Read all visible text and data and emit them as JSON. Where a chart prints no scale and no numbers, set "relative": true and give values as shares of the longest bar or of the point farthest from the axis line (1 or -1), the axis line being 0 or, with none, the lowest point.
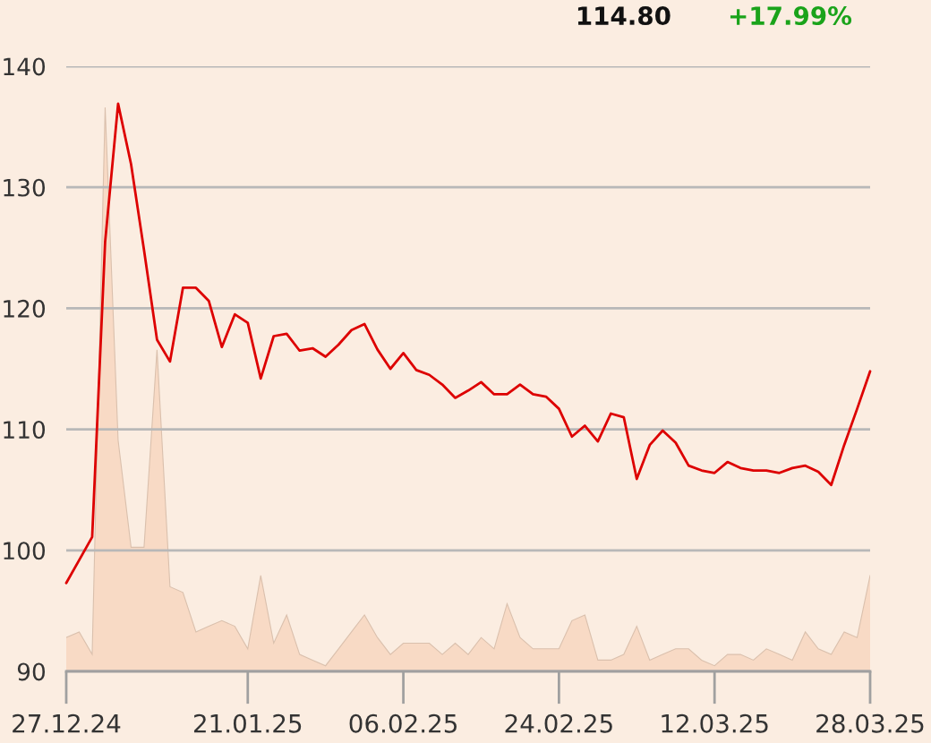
{
  "chart_data": [
    {
      "type": "line",
      "annotations": [
        "114.80",
        "+17.99%"
      ],
      "categories": [
        "27.12.24",
        null,
        null,
        null,
        null,
        null,
        null,
        null,
        null,
        null,
        null,
        null,
        null,
        null,
        "21.01.25",
        null,
        null,
        null,
        null,
        null,
        null,
        null,
        null,
        null,
        null,
        null,
        "06.02.25",
        null,
        null,
        null,
        null,
        null,
        null,
        null,
        null,
        null,
        null,
        null,
        "24.02.25",
        null,
        null,
        null,
        null,
        null,
        null,
        null,
        null,
        null,
        null,
        null,
        "12.03.25",
        null,
        null,
        null,
        null,
        null,
        null,
        null,
        null,
        null,
        null,
        null,
        "28.03.25"
      ],
      "values": [
        97.3,
        99.2,
        101.1,
        125.5,
        136.9,
        131.9,
        124.8,
        117.4,
        115.6,
        121.7,
        121.7,
        120.6,
        116.8,
        119.5,
        118.8,
        114.2,
        117.7,
        117.9,
        116.5,
        116.7,
        116.0,
        117.0,
        118.2,
        118.7,
        116.6,
        115.0,
        116.3,
        114.9,
        114.5,
        113.7,
        112.6,
        113.2,
        113.9,
        112.9,
        112.9,
        113.7,
        112.9,
        112.7,
        111.7,
        109.4,
        110.3,
        109.0,
        111.3,
        111.0,
        105.9,
        108.7,
        109.9,
        108.9,
        107.0,
        106.6,
        106.4,
        107.3,
        106.8,
        106.6,
        106.6,
        106.4,
        106.8,
        107.0,
        106.5,
        105.4,
        108.7,
        111.7,
        114.8
      ],
      "color": "#dd0000",
      "ylim": [
        90,
        140
      ],
      "yticks": [
        90,
        100,
        110,
        120,
        130,
        140
      ],
      "grid": "y"
    },
    {
      "type": "area",
      "relative": true,
      "tick_labels": false,
      "categories": [
        "27.12.24",
        null,
        null,
        null,
        null,
        null,
        null,
        null,
        null,
        null,
        null,
        null,
        null,
        null,
        "21.01.25",
        null,
        null,
        null,
        null,
        null,
        null,
        null,
        null,
        null,
        null,
        null,
        "06.02.25",
        null,
        null,
        null,
        null,
        null,
        null,
        null,
        null,
        null,
        null,
        null,
        "24.02.25",
        null,
        null,
        null,
        null,
        null,
        null,
        null,
        null,
        null,
        null,
        null,
        "12.03.25",
        null,
        null,
        null,
        null,
        null,
        null,
        null,
        null,
        null,
        null,
        null,
        "28.03.25"
      ],
      "values": [
        0.06,
        0.07,
        0.03,
        1,
        0.41,
        0.22,
        0.22,
        0.57,
        0.15,
        0.14,
        0.07,
        0.08,
        0.09,
        0.08,
        0.04,
        0.17,
        0.05,
        0.1,
        0.03,
        0.02,
        0.01,
        0.04,
        0.07,
        0.1,
        0.06,
        0.03,
        0.05,
        0.05,
        0.05,
        0.03,
        0.05,
        0.03,
        0.06,
        0.04,
        0.12,
        0.06,
        0.04,
        0.04,
        0.04,
        0.09,
        0.1,
        0.02,
        0.02,
        0.03,
        0.08,
        0.02,
        0.03,
        0.04,
        0.04,
        0.02,
        0.01,
        0.03,
        0.03,
        0.02,
        0.04,
        0.03,
        0.02,
        0.07,
        0.04,
        0.03,
        0.07,
        0.06,
        0.17
      ],
      "color": "#f8dac5"
    }
  ]
}
